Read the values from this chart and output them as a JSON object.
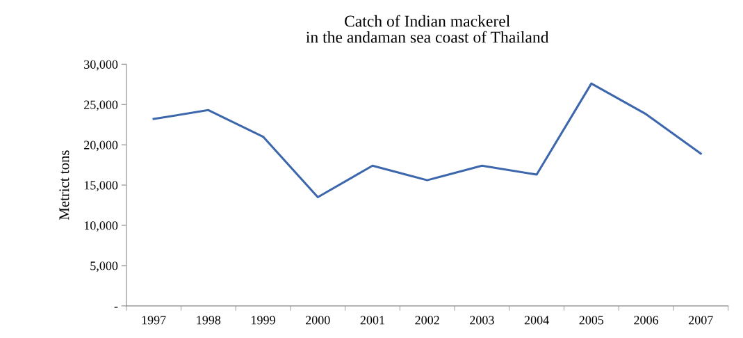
{
  "chart_data": {
    "type": "line",
    "title": "Catch of Indian mackerel\nin the andaman sea coast of Thailand",
    "ylabel": "Metrict tons",
    "categories": [
      "1997",
      "1998",
      "1999",
      "2000",
      "2001",
      "2002",
      "2003",
      "2004",
      "2005",
      "2006",
      "2007"
    ],
    "series": [
      {
        "color": "#3d67ad",
        "values": [
          23200,
          24300,
          21000,
          13500,
          17400,
          15600,
          17400,
          16300,
          27600,
          23800,
          18900
        ]
      }
    ],
    "ylim": [
      0,
      30000
    ],
    "yticks": [
      {
        "value": 0,
        "label": "-"
      },
      {
        "value": 5000,
        "label": "5,000"
      },
      {
        "value": 10000,
        "label": "10,000"
      },
      {
        "value": 15000,
        "label": "15,000"
      },
      {
        "value": 20000,
        "label": "20,000"
      },
      {
        "value": 25000,
        "label": "25,000"
      },
      {
        "value": 30000,
        "label": "30,000"
      }
    ],
    "grid": false,
    "legend": false,
    "marker": "none",
    "line_style": "solid"
  }
}
